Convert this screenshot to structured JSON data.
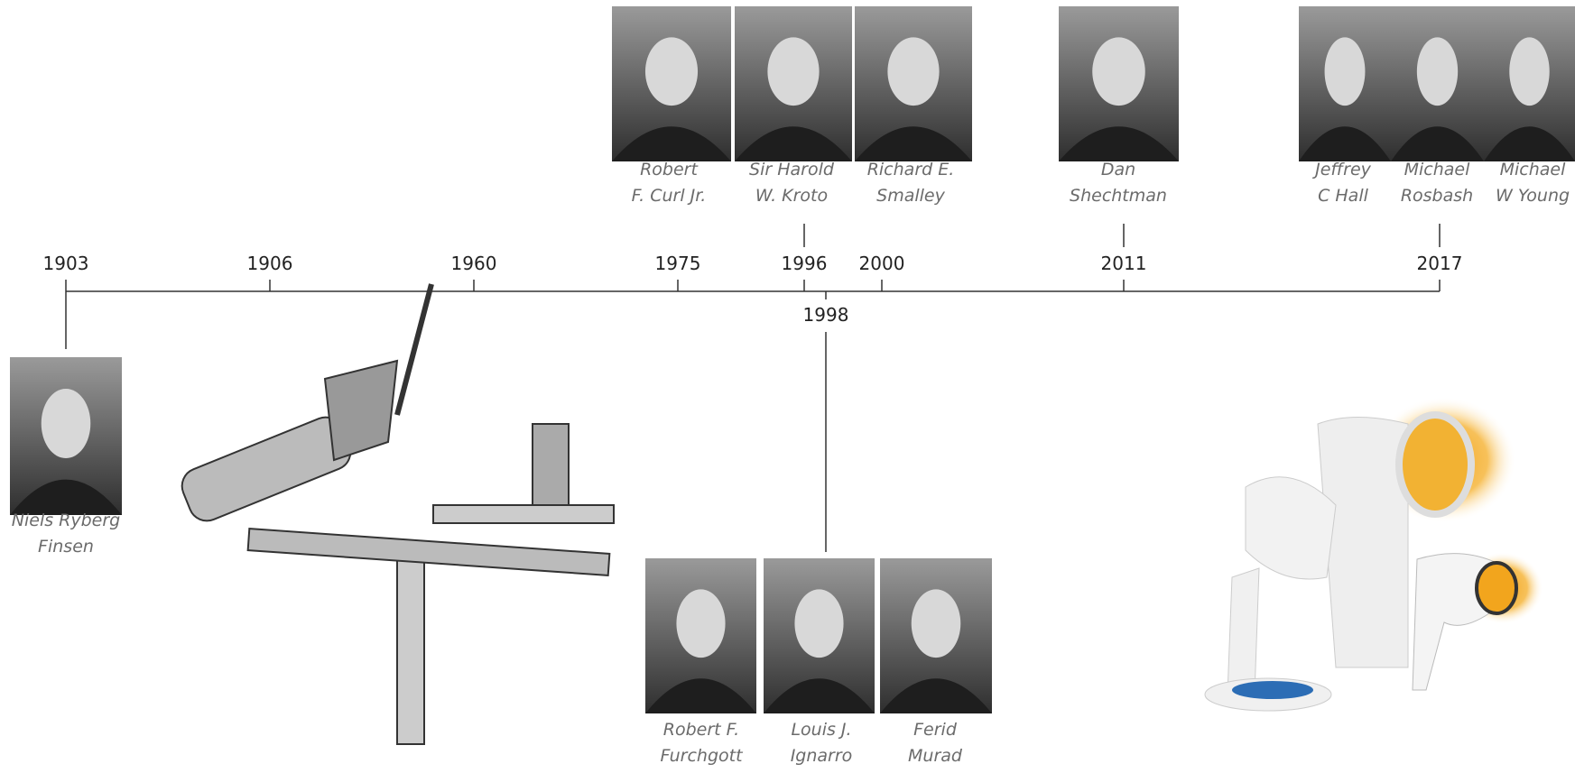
{
  "timeline": {
    "above": [
      "1903",
      "1906",
      "1960",
      "1975",
      "1996",
      "2000",
      "2011",
      "2017"
    ],
    "below": [
      "1998"
    ]
  },
  "groups": [
    {
      "people": [
        [
          "Niels Ryberg",
          "Finsen"
        ]
      ]
    },
    {
      "people": [
        [
          "Robert",
          "F. Curl Jr."
        ],
        [
          "Sir Harold",
          "W. Kroto"
        ],
        [
          "Richard E.",
          "Smalley"
        ]
      ]
    },
    {
      "people": [
        [
          "Dan",
          "Shechtman"
        ]
      ]
    },
    {
      "people": [
        [
          "Jeffrey",
          "C Hall"
        ],
        [
          "Michael",
          "Rosbash"
        ],
        [
          "Michael",
          "W Young"
        ]
      ]
    },
    {
      "people": [
        [
          "Robert F.",
          "Furchgott"
        ],
        [
          "Louis J.",
          "Ignarro"
        ],
        [
          "Ferid",
          "Murad"
        ]
      ]
    }
  ]
}
